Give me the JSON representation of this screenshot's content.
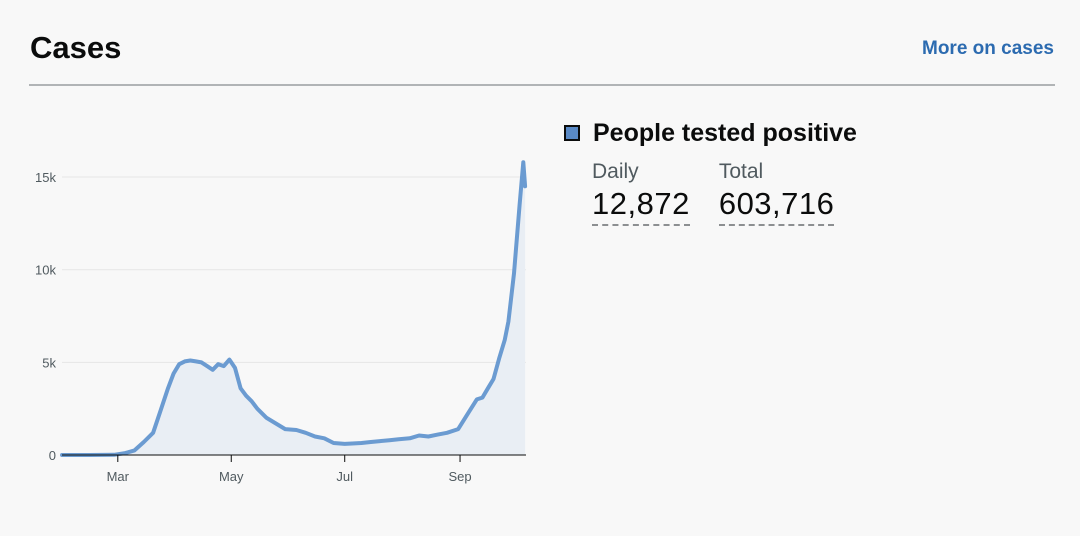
{
  "card": {
    "title": "Cases",
    "more_link": "More on cases"
  },
  "summary": {
    "legend_label": "People tested positive",
    "daily_label": "Daily",
    "daily_value": "12,872",
    "total_label": "Total",
    "total_value": "603,716"
  },
  "colors": {
    "line": "#6b9bd1",
    "area": "#e9eef4",
    "link": "#2c6bb0",
    "swatch": "#5a8ac6"
  },
  "chart_data": {
    "type": "area",
    "title": "",
    "xlabel": "",
    "ylabel": "",
    "ylim": [
      0,
      16000
    ],
    "y_ticks": [
      0,
      5000,
      10000,
      15000
    ],
    "y_tick_labels": [
      "0",
      "5k",
      "10k",
      "15k"
    ],
    "grid": true,
    "x_ticks": [
      "2020-03-01",
      "2020-05-01",
      "2020-07-01",
      "2020-09-01"
    ],
    "x_tick_labels": [
      "Mar",
      "May",
      "Jul",
      "Sep"
    ],
    "series": [
      {
        "x": [
          "2020-01-31",
          "2020-02-15",
          "2020-02-28",
          "2020-03-05",
          "2020-03-10",
          "2020-03-15",
          "2020-03-20",
          "2020-03-24",
          "2020-03-28",
          "2020-03-31",
          "2020-04-03",
          "2020-04-06",
          "2020-04-09",
          "2020-04-12",
          "2020-04-15",
          "2020-04-18",
          "2020-04-21",
          "2020-04-24",
          "2020-04-27",
          "2020-04-30",
          "2020-05-01",
          "2020-05-03",
          "2020-05-06",
          "2020-05-09",
          "2020-05-12",
          "2020-05-15",
          "2020-05-20",
          "2020-05-25",
          "2020-05-30",
          "2020-06-05",
          "2020-06-10",
          "2020-06-15",
          "2020-06-20",
          "2020-06-25",
          "2020-07-01",
          "2020-07-05",
          "2020-07-10",
          "2020-07-15",
          "2020-07-20",
          "2020-07-25",
          "2020-07-30",
          "2020-08-05",
          "2020-08-10",
          "2020-08-15",
          "2020-08-20",
          "2020-08-25",
          "2020-08-31",
          "2020-09-05",
          "2020-09-10",
          "2020-09-13",
          "2020-09-16",
          "2020-09-19",
          "2020-09-22",
          "2020-09-25",
          "2020-09-27",
          "2020-09-30",
          "2020-10-03",
          "2020-10-05",
          "2020-10-06"
        ],
        "values": [
          0,
          0,
          10,
          100,
          250,
          700,
          1200,
          2400,
          3600,
          4400,
          4900,
          5050,
          5100,
          5050,
          5000,
          4800,
          4600,
          4900,
          4800,
          5150,
          5000,
          4700,
          3600,
          3200,
          2900,
          2500,
          2000,
          1700,
          1400,
          1350,
          1200,
          1000,
          900,
          650,
          600,
          620,
          650,
          700,
          750,
          800,
          850,
          900,
          1050,
          1000,
          1100,
          1200,
          1400,
          2200,
          3000,
          3100,
          3600,
          4100,
          5200,
          6200,
          7200,
          9800,
          13500,
          15800,
          14500
        ]
      }
    ]
  }
}
